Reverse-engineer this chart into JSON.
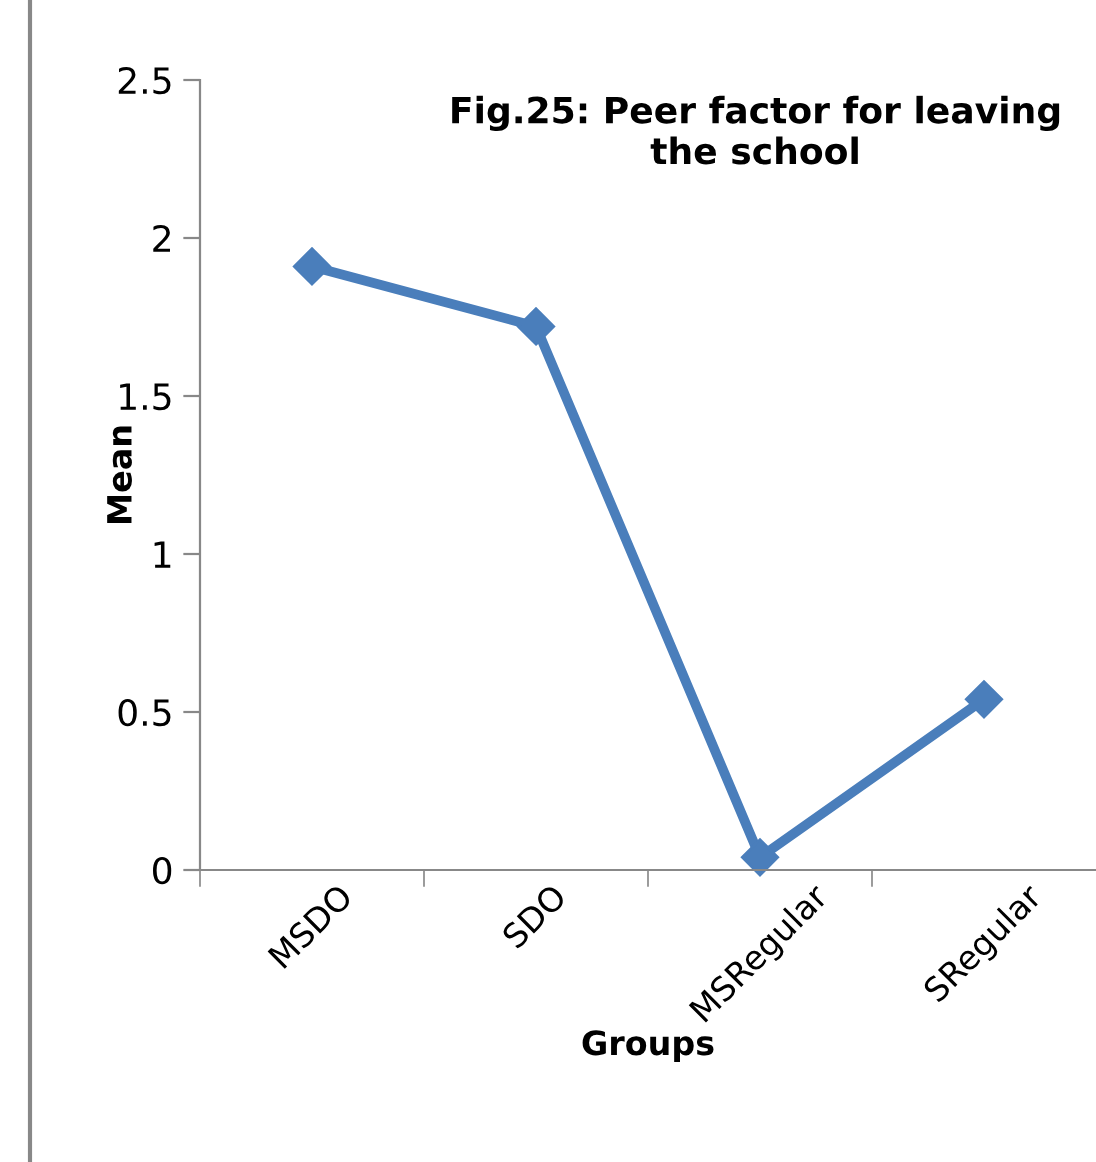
{
  "chart_data": {
    "type": "line",
    "title": "Fig.25: Peer factor for leaving the school",
    "xlabel": "Groups",
    "ylabel": "Mean",
    "categories": [
      "MSDO",
      "SDO",
      "MSRegular",
      "SRegular"
    ],
    "series": [
      {
        "color": "#4a7ebb",
        "values": [
          1.91,
          1.72,
          0.04,
          0.54
        ]
      }
    ],
    "ylim": [
      0,
      2.5
    ],
    "yticks": [
      0,
      0.5,
      1,
      1.5,
      2,
      2.5
    ],
    "grid": false,
    "legend": false,
    "marker": "diamond",
    "line_style": "solid"
  }
}
